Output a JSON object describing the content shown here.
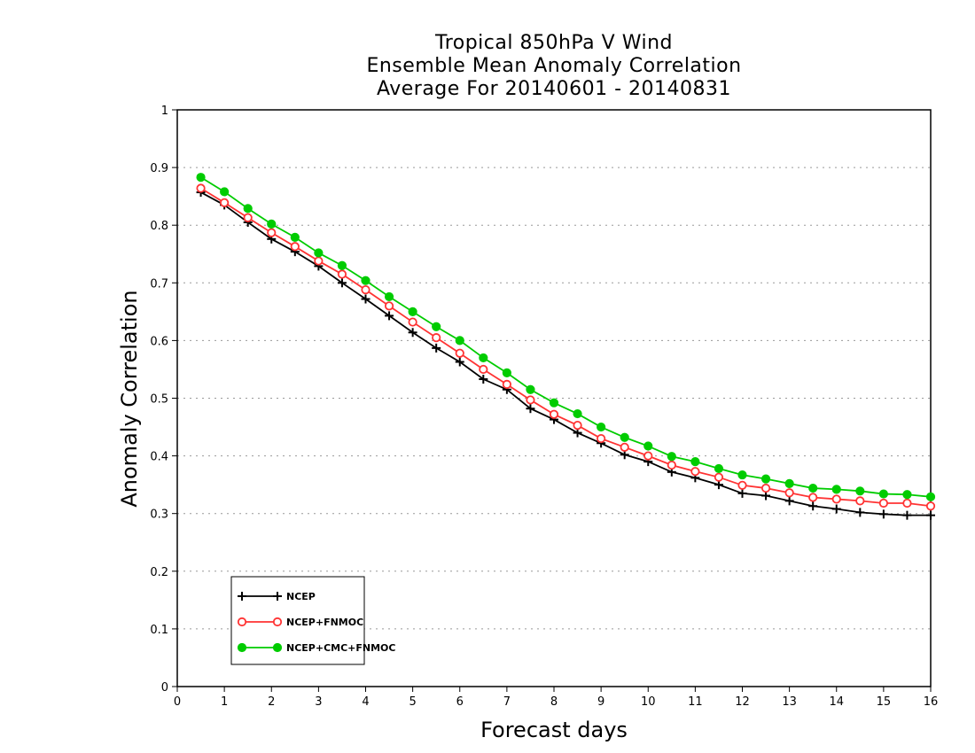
{
  "chart_data": {
    "type": "line",
    "title": [
      "Tropical 850hPa V Wind",
      "Ensemble Mean Anomaly Correlation",
      "Average For 20140601 - 20140831"
    ],
    "xlabel": "Forecast days",
    "ylabel": "Anomaly Correlation",
    "xlim": [
      0,
      16
    ],
    "ylim": [
      0,
      1
    ],
    "xticks": [
      "0",
      "1",
      "2",
      "3",
      "4",
      "5",
      "6",
      "7",
      "8",
      "9",
      "10",
      "11",
      "12",
      "13",
      "14",
      "15",
      "16"
    ],
    "yticks": [
      "0",
      "0.1",
      "0.2",
      "0.3",
      "0.4",
      "0.5",
      "0.6",
      "0.7",
      "0.8",
      "0.9",
      "1"
    ],
    "grid": true,
    "legend_position": "bottom-left",
    "x": [
      0.5,
      1,
      1.5,
      2,
      2.5,
      3,
      3.5,
      4,
      4.5,
      5,
      5.5,
      6,
      6.5,
      7,
      7.5,
      8,
      8.5,
      9,
      9.5,
      10,
      10.5,
      11,
      11.5,
      12,
      12.5,
      13,
      13.5,
      14,
      14.5,
      15,
      15.5,
      16
    ],
    "series": [
      {
        "name": "NCEP",
        "color": "#000000",
        "marker": "plus",
        "values": [
          0.857,
          0.835,
          0.805,
          0.776,
          0.754,
          0.729,
          0.7,
          0.672,
          0.643,
          0.614,
          0.587,
          0.563,
          0.533,
          0.515,
          0.482,
          0.463,
          0.44,
          0.422,
          0.402,
          0.39,
          0.372,
          0.362,
          0.35,
          0.335,
          0.331,
          0.322,
          0.313,
          0.308,
          0.302,
          0.299,
          0.297,
          0.297
        ]
      },
      {
        "name": "NCEP+FNMOC",
        "color": "#ff3333",
        "marker": "open-circle",
        "values": [
          0.864,
          0.839,
          0.813,
          0.787,
          0.763,
          0.738,
          0.715,
          0.688,
          0.66,
          0.632,
          0.605,
          0.578,
          0.55,
          0.524,
          0.497,
          0.472,
          0.453,
          0.43,
          0.415,
          0.4,
          0.384,
          0.373,
          0.363,
          0.349,
          0.344,
          0.336,
          0.328,
          0.325,
          0.322,
          0.318,
          0.318,
          0.313
        ]
      },
      {
        "name": "NCEP+CMC+FNMOC",
        "color": "#00cc00",
        "marker": "filled-circle",
        "values": [
          0.883,
          0.858,
          0.829,
          0.802,
          0.779,
          0.752,
          0.73,
          0.704,
          0.676,
          0.65,
          0.624,
          0.6,
          0.57,
          0.544,
          0.515,
          0.492,
          0.473,
          0.45,
          0.432,
          0.417,
          0.399,
          0.39,
          0.378,
          0.367,
          0.36,
          0.352,
          0.344,
          0.342,
          0.339,
          0.334,
          0.333,
          0.329
        ]
      }
    ]
  }
}
